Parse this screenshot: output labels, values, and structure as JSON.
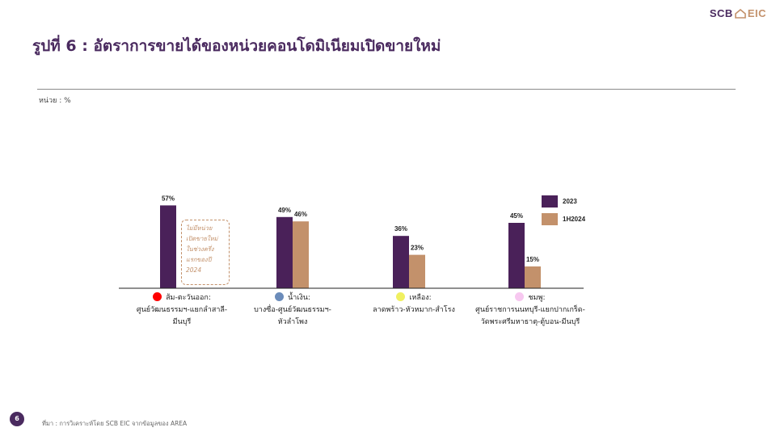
{
  "logo": {
    "left": "SCB",
    "right": "EIC"
  },
  "title": "รูปที่ 6 : อัตราการขายได้ของหน่วยคอนโดมิเนียมเปิดขายใหม่",
  "unit": "หน่วย : %",
  "note": [
    "ไม่มีหน่วย",
    "เปิดขายใหม่",
    "ในช่วงครึ่ง",
    "แรกของปี",
    "2024"
  ],
  "source": "ที่มา : การวิเคราะห์โดย SCB EIC จากข้อมูลของ AREA",
  "page_number": "6",
  "colors": {
    "series_2023": "#4a2159",
    "series_1h2024": "#c3916b",
    "title": "#4a2a5f"
  },
  "chart_data": {
    "type": "bar",
    "ylim": [
      0,
      60
    ],
    "grid": false,
    "legend_position": "top-right",
    "categories": [
      {
        "line1": "ส้ม-ตะวันออก:",
        "line2": "ศูนย์วัฒนธรรมฯ-แยกลำสาลี-",
        "line3": "มีนบุรี",
        "dot_color": "#ff0000"
      },
      {
        "line1": "น้ำเงิน:",
        "line2": "บางซื่อ-ศูนย์วัฒนธรรมฯ-",
        "line3": "หัวลำโพง",
        "dot_color": "#6b8cba"
      },
      {
        "line1": "เหลือง:",
        "line2": "ลาดพร้าว-หัวหมาก-สำโรง",
        "line3": "",
        "dot_color": "#f0f060"
      },
      {
        "line1": "ชมพู:",
        "line2": "ศูนย์ราชการนนทบุรี-แยกปากเกร็ด-",
        "line3": "วัดพระศรีมหาธาตุ-ตู้บอน-มีนบุรี",
        "dot_color": "#f7c8f0"
      }
    ],
    "series": [
      {
        "name": "2023",
        "values": [
          57,
          49,
          36,
          45
        ],
        "labels": [
          "57%",
          "49%",
          "36%",
          "45%"
        ]
      },
      {
        "name": "1H2024",
        "values": [
          null,
          46,
          23,
          15
        ],
        "labels": [
          "",
          "46%",
          "23%",
          "15%"
        ]
      }
    ]
  }
}
